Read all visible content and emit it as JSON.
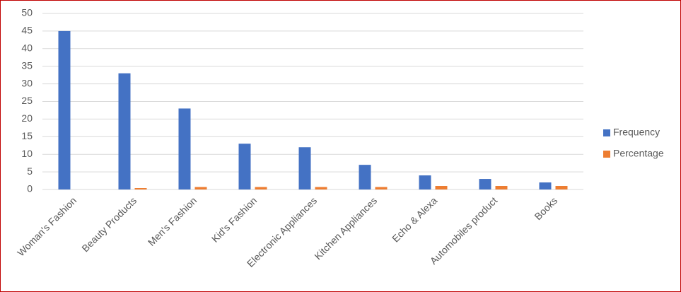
{
  "chart_data": {
    "type": "bar",
    "categories": [
      "Woman's Fashion",
      "Beauty Products",
      "Men's Fashion",
      "Kid's Fashion",
      "Electronic Appliances",
      "Kitchen Appliances",
      "Echo & Alexa",
      "Automobiles product",
      "Books"
    ],
    "series": [
      {
        "name": "Frequency",
        "color": "#4472c4",
        "values": [
          45,
          33,
          23,
          13,
          12,
          7,
          4,
          3,
          2
        ]
      },
      {
        "name": "Percentage",
        "color": "#ed7d31",
        "values": [
          0,
          0.4,
          0.7,
          0.7,
          0.7,
          0.7,
          1,
          1,
          1
        ]
      }
    ],
    "ylim": [
      0,
      50
    ],
    "yticks": [
      0,
      5,
      10,
      15,
      20,
      25,
      30,
      35,
      40,
      45,
      50
    ],
    "grid": true,
    "legend": "right"
  }
}
